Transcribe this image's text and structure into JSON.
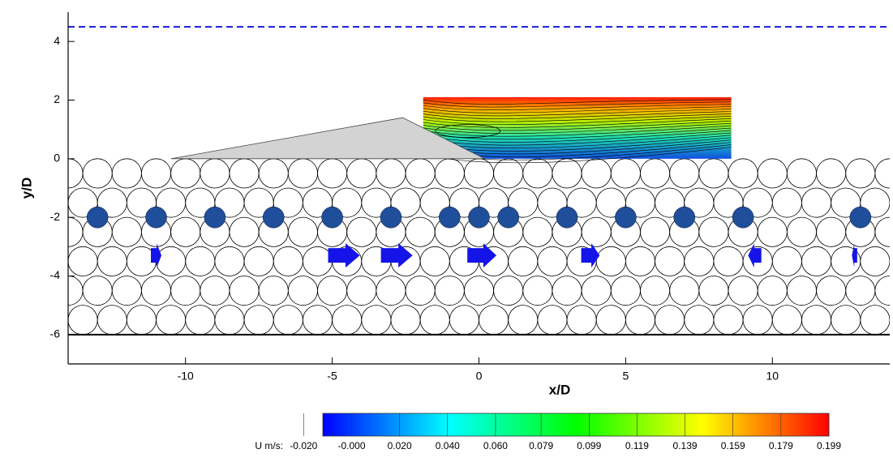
{
  "chart_data": {
    "type": "flow-field",
    "x_label": "x/D",
    "y_label": "y/D",
    "xlim": [
      -14,
      14
    ],
    "ylim": [
      -7,
      5
    ],
    "xticks": [
      -10,
      -5,
      0,
      5,
      10
    ],
    "yticks": [
      -6,
      -4,
      -2,
      0,
      2,
      4
    ],
    "reference_lines": [
      {
        "y": 4.5,
        "style": "dashed",
        "color": "#1a1ad8"
      },
      {
        "y": -6,
        "style": "solid",
        "color": "#000000"
      }
    ],
    "dune": {
      "x": [
        -10.5,
        -2.6,
        0.2
      ],
      "y": [
        0,
        1.4,
        0
      ],
      "color": "#d3d3d3"
    },
    "field_panel": {
      "xlim": [
        -1.9,
        8.6
      ],
      "ylim": [
        0,
        2.1
      ]
    },
    "particles": {
      "x": [
        -13,
        -11,
        -9,
        -7,
        -5,
        -3,
        -1,
        0,
        1,
        3,
        5,
        7,
        9,
        13
      ],
      "y": [
        -2,
        -2,
        -2,
        -2,
        -2,
        -2,
        -2,
        -2,
        -2,
        -2,
        -2,
        -2,
        -2,
        -2
      ],
      "color": "#1f4f9a"
    },
    "arrows": {
      "x": [
        -11,
        -4.6,
        -2.8,
        0.1,
        3.8,
        9.4,
        12.8
      ],
      "y": -3.3,
      "u": [
        0.04,
        0.12,
        0.12,
        0.11,
        0.07,
        -0.05,
        -0.02
      ],
      "color": "#1414e8"
    },
    "colorbar": {
      "label": "U m/s:",
      "clim": [
        -0.012,
        0.199
      ],
      "colors": [
        "#0000ff",
        "#0080ff",
        "#00ffff",
        "#00ff80",
        "#00ff00",
        "#80ff00",
        "#ffff00",
        "#ff8000",
        "#ff0000"
      ],
      "ticks": [
        {
          "value": -0.02,
          "label": "-0.020"
        },
        {
          "value": 0,
          "label": "-0.000"
        },
        {
          "value": 0.02,
          "label": "0.020"
        },
        {
          "value": 0.04,
          "label": "0.040"
        },
        {
          "value": 0.06,
          "label": "0.060"
        },
        {
          "value": 0.079,
          "label": "0.079"
        },
        {
          "value": 0.099,
          "label": "0.099"
        },
        {
          "value": 0.119,
          "label": "0.119"
        },
        {
          "value": 0.139,
          "label": "0.139"
        },
        {
          "value": 0.159,
          "label": "0.159"
        },
        {
          "value": 0.179,
          "label": "0.179"
        },
        {
          "value": 0.199,
          "label": "0.199"
        }
      ]
    }
  }
}
